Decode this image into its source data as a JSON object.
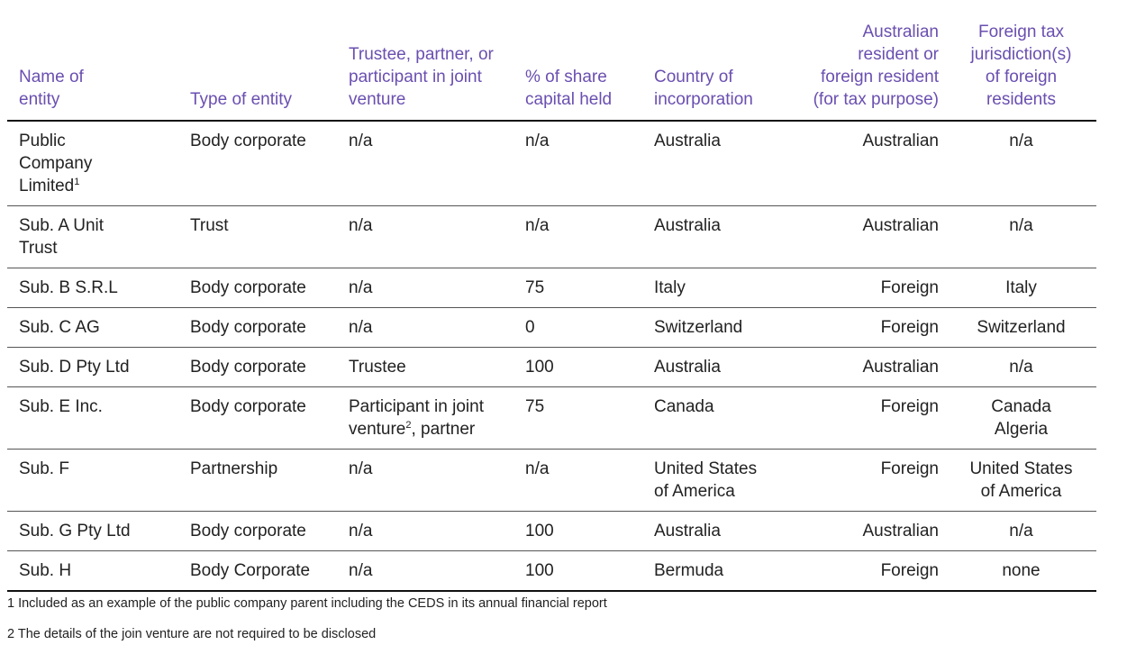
{
  "table": {
    "headers": {
      "name": "Name of entity",
      "type": "Type of entity",
      "role": "Trustee, partner, or participant in joint venture",
      "share": "% of share capital held",
      "country": "Country of incorporation",
      "residency": "Australian resident or foreign resident (for tax purpose)",
      "jurisdiction": "Foreign tax jurisdiction(s) of foreign residents"
    },
    "rows": [
      {
        "name": "Public Company Limited",
        "name_sup": "1",
        "type": "Body corporate",
        "role": "n/a",
        "role_sup": "",
        "role_after": "",
        "share": "n/a",
        "country": "Australia",
        "residency": "Australian",
        "jurisdiction": "n/a",
        "jurisdiction2": ""
      },
      {
        "name": "Sub. A Unit Trust",
        "name_sup": "",
        "type": "Trust",
        "role": "n/a",
        "role_sup": "",
        "role_after": "",
        "share": "n/a",
        "country": "Australia",
        "residency": "Australian",
        "jurisdiction": "n/a",
        "jurisdiction2": ""
      },
      {
        "name": "Sub. B S.R.L",
        "name_sup": "",
        "type": "Body corporate",
        "role": "n/a",
        "role_sup": "",
        "role_after": "",
        "share": "75",
        "country": "Italy",
        "residency": "Foreign",
        "jurisdiction": "Italy",
        "jurisdiction2": ""
      },
      {
        "name": "Sub. C AG",
        "name_sup": "",
        "type": "Body corporate",
        "role": "n/a",
        "role_sup": "",
        "role_after": "",
        "share": "0",
        "country": "Switzerland",
        "residency": "Foreign",
        "jurisdiction": "Switzerland",
        "jurisdiction2": ""
      },
      {
        "name": "Sub. D Pty Ltd",
        "name_sup": "",
        "type": "Body corporate",
        "role": "Trustee",
        "role_sup": "",
        "role_after": "",
        "share": "100",
        "country": "Australia",
        "residency": "Australian",
        "jurisdiction": "n/a",
        "jurisdiction2": ""
      },
      {
        "name": "Sub. E Inc.",
        "name_sup": "",
        "type": "Body corporate",
        "role": "Participant in joint venture",
        "role_sup": "2",
        "role_after": ", partner",
        "share": "75",
        "country": "Canada",
        "residency": "Foreign",
        "jurisdiction": "Canada",
        "jurisdiction2": "Algeria"
      },
      {
        "name": "Sub. F",
        "name_sup": "",
        "type": "Partnership",
        "role": "n/a",
        "role_sup": "",
        "role_after": "",
        "share": "n/a",
        "country": "United States of America",
        "residency": "Foreign",
        "jurisdiction": "United States of America",
        "jurisdiction2": ""
      },
      {
        "name": "Sub. G Pty Ltd",
        "name_sup": "",
        "type": "Body corporate",
        "role": "n/a",
        "role_sup": "",
        "role_after": "",
        "share": "100",
        "country": "Australia",
        "residency": "Australian",
        "jurisdiction": "n/a",
        "jurisdiction2": ""
      },
      {
        "name": "Sub. H",
        "name_sup": "",
        "type": "Body Corporate",
        "role": "n/a",
        "role_sup": "",
        "role_after": "",
        "share": "100",
        "country": "Bermuda",
        "residency": "Foreign",
        "jurisdiction": "none",
        "jurisdiction2": ""
      }
    ]
  },
  "footnotes": [
    "1 Included as an example of the public company parent including the CEDS in its annual financial report",
    "2 The details of the join venture are not required to be disclosed"
  ],
  "colors": {
    "header_text": "#6a4fb0",
    "body_text": "#222222",
    "rule": "#111111"
  }
}
